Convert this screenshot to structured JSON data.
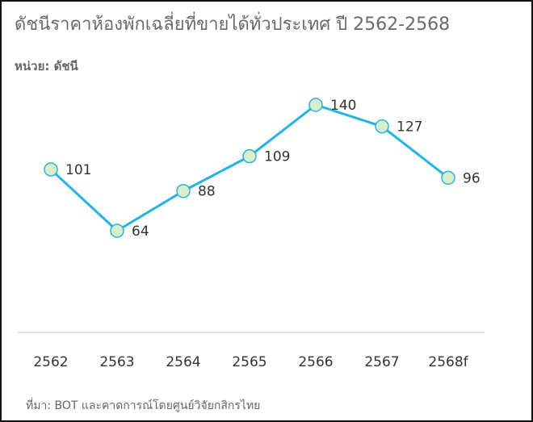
{
  "header": {
    "title": "ดัชนีราคาห้องพักเฉลี่ยที่ขายได้ทั่วประเทศ ปี 2562-2568",
    "unit": "หน่วย: ดัชนี"
  },
  "footer": {
    "source": "ที่มา: BOT และคาดการณ์โดยศูนย์วิจัยกสิกรไทย"
  },
  "colors": {
    "line": "#1fb4ea",
    "marker_fill": "#d9efc9",
    "marker_stroke": "#1fb4ea",
    "baseline": "#d8d8d8"
  },
  "chart_data": {
    "type": "line",
    "title": "ดัชนีราคาห้องพักเฉลี่ยที่ขายได้ทั่วประเทศ ปี 2562-2568",
    "ylabel": "หน่วย: ดัชนี",
    "xlabel": "",
    "categories": [
      "2562",
      "2563",
      "2564",
      "2565",
      "2566",
      "2567",
      "2568f"
    ],
    "series": [
      {
        "values": [
          101,
          64,
          88,
          109,
          140,
          127,
          96
        ]
      }
    ],
    "ylim": [
      0,
      150
    ],
    "grid": false,
    "legend": "none"
  }
}
